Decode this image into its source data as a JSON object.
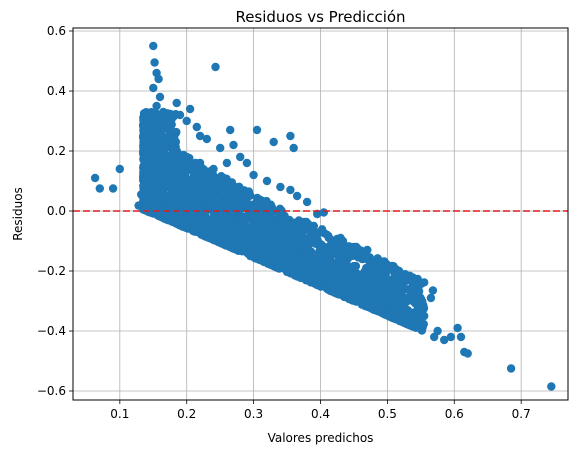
{
  "chart_data": {
    "type": "scatter",
    "title": "Residuos vs Predicción",
    "xlabel": "Valores predichos",
    "ylabel": "Residuos",
    "xlim": [
      0.03,
      0.77
    ],
    "ylim": [
      -0.63,
      0.61
    ],
    "xticks": [
      0.1,
      0.2,
      0.3,
      0.4,
      0.5,
      0.6,
      0.7
    ],
    "xtick_labels": [
      "0.1",
      "0.2",
      "0.3",
      "0.4",
      "0.5",
      "0.6",
      "0.7"
    ],
    "yticks": [
      -0.6,
      -0.4,
      -0.2,
      0.0,
      0.2,
      0.4,
      0.6
    ],
    "ytick_labels": [
      "−0.6",
      "−0.4",
      "−0.2",
      "0.0",
      "0.2",
      "0.4",
      "0.6"
    ],
    "grid": true,
    "reference_line": {
      "y": 0.0,
      "color": "#e41a1c",
      "style": "dashed"
    },
    "marker_color": "#1f77b4",
    "points": [
      {
        "x": 0.063,
        "y": 0.11
      },
      {
        "x": 0.07,
        "y": 0.075
      },
      {
        "x": 0.09,
        "y": 0.075
      },
      {
        "x": 0.1,
        "y": 0.14
      },
      {
        "x": 0.128,
        "y": 0.018
      },
      {
        "x": 0.132,
        "y": 0.055
      },
      {
        "x": 0.14,
        "y": 0.01
      },
      {
        "x": 0.14,
        "y": 0.13
      },
      {
        "x": 0.145,
        "y": 0.01
      },
      {
        "x": 0.15,
        "y": 0.55
      },
      {
        "x": 0.152,
        "y": 0.495
      },
      {
        "x": 0.155,
        "y": 0.46
      },
      {
        "x": 0.158,
        "y": 0.44
      },
      {
        "x": 0.15,
        "y": 0.41
      },
      {
        "x": 0.16,
        "y": 0.38
      },
      {
        "x": 0.155,
        "y": 0.35
      },
      {
        "x": 0.165,
        "y": 0.33
      },
      {
        "x": 0.17,
        "y": 0.3
      },
      {
        "x": 0.15,
        "y": 0.28
      },
      {
        "x": 0.16,
        "y": 0.25
      },
      {
        "x": 0.175,
        "y": 0.23
      },
      {
        "x": 0.185,
        "y": 0.36
      },
      {
        "x": 0.19,
        "y": 0.32
      },
      {
        "x": 0.2,
        "y": 0.3
      },
      {
        "x": 0.205,
        "y": 0.34
      },
      {
        "x": 0.215,
        "y": 0.28
      },
      {
        "x": 0.22,
        "y": 0.25
      },
      {
        "x": 0.23,
        "y": 0.24
      },
      {
        "x": 0.243,
        "y": 0.48
      },
      {
        "x": 0.25,
        "y": 0.21
      },
      {
        "x": 0.265,
        "y": 0.27
      },
      {
        "x": 0.27,
        "y": 0.22
      },
      {
        "x": 0.28,
        "y": 0.18
      },
      {
        "x": 0.305,
        "y": 0.27
      },
      {
        "x": 0.33,
        "y": 0.23
      },
      {
        "x": 0.355,
        "y": 0.25
      },
      {
        "x": 0.36,
        "y": 0.21
      },
      {
        "x": 0.29,
        "y": 0.16
      },
      {
        "x": 0.26,
        "y": 0.16
      },
      {
        "x": 0.24,
        "y": 0.14
      },
      {
        "x": 0.3,
        "y": 0.12
      },
      {
        "x": 0.32,
        "y": 0.1
      },
      {
        "x": 0.34,
        "y": 0.08
      },
      {
        "x": 0.355,
        "y": 0.07
      },
      {
        "x": 0.365,
        "y": 0.05
      },
      {
        "x": 0.38,
        "y": 0.03
      },
      {
        "x": 0.395,
        "y": -0.01
      },
      {
        "x": 0.405,
        "y": -0.005
      },
      {
        "x": 0.39,
        "y": -0.05
      },
      {
        "x": 0.41,
        "y": -0.08
      },
      {
        "x": 0.43,
        "y": -0.09
      },
      {
        "x": 0.45,
        "y": -0.12
      },
      {
        "x": 0.46,
        "y": -0.15
      },
      {
        "x": 0.47,
        "y": -0.13
      },
      {
        "x": 0.48,
        "y": -0.21
      },
      {
        "x": 0.49,
        "y": -0.18
      },
      {
        "x": 0.5,
        "y": -0.23
      },
      {
        "x": 0.51,
        "y": -0.25
      },
      {
        "x": 0.52,
        "y": -0.29
      },
      {
        "x": 0.53,
        "y": -0.3
      },
      {
        "x": 0.54,
        "y": -0.29
      },
      {
        "x": 0.545,
        "y": -0.33
      },
      {
        "x": 0.555,
        "y": -0.35
      },
      {
        "x": 0.565,
        "y": -0.29
      },
      {
        "x": 0.568,
        "y": -0.265
      },
      {
        "x": 0.57,
        "y": -0.42
      },
      {
        "x": 0.575,
        "y": -0.4
      },
      {
        "x": 0.585,
        "y": -0.43
      },
      {
        "x": 0.595,
        "y": -0.42
      },
      {
        "x": 0.605,
        "y": -0.39
      },
      {
        "x": 0.61,
        "y": -0.42
      },
      {
        "x": 0.615,
        "y": -0.47
      },
      {
        "x": 0.62,
        "y": -0.475
      },
      {
        "x": 0.685,
        "y": -0.525
      },
      {
        "x": 0.745,
        "y": -0.585
      },
      {
        "x": 0.18,
        "y": 0.2
      },
      {
        "x": 0.2,
        "y": 0.18
      },
      {
        "x": 0.22,
        "y": 0.16
      },
      {
        "x": 0.195,
        "y": 0.11
      },
      {
        "x": 0.25,
        "y": 0.08
      },
      {
        "x": 0.27,
        "y": 0.05
      },
      {
        "x": 0.23,
        "y": 0.05
      },
      {
        "x": 0.3,
        "y": 0.01
      },
      {
        "x": 0.32,
        "y": -0.02
      },
      {
        "x": 0.34,
        "y": -0.05
      },
      {
        "x": 0.36,
        "y": -0.08
      },
      {
        "x": 0.38,
        "y": -0.12
      },
      {
        "x": 0.4,
        "y": -0.15
      },
      {
        "x": 0.42,
        "y": -0.18
      },
      {
        "x": 0.44,
        "y": -0.22
      },
      {
        "x": 0.46,
        "y": -0.25
      },
      {
        "x": 0.49,
        "y": -0.29
      },
      {
        "x": 0.51,
        "y": -0.33
      },
      {
        "x": 0.53,
        "y": -0.36
      },
      {
        "x": 0.55,
        "y": -0.38
      },
      {
        "x": 0.47,
        "y": -0.28
      },
      {
        "x": 0.43,
        "y": -0.23
      },
      {
        "x": 0.41,
        "y": -0.2
      },
      {
        "x": 0.37,
        "y": -0.17
      },
      {
        "x": 0.33,
        "y": -0.14
      },
      {
        "x": 0.29,
        "y": -0.11
      },
      {
        "x": 0.25,
        "y": -0.08
      },
      {
        "x": 0.21,
        "y": -0.05
      },
      {
        "x": 0.17,
        "y": -0.02
      }
    ],
    "band_samples": 2600
  }
}
